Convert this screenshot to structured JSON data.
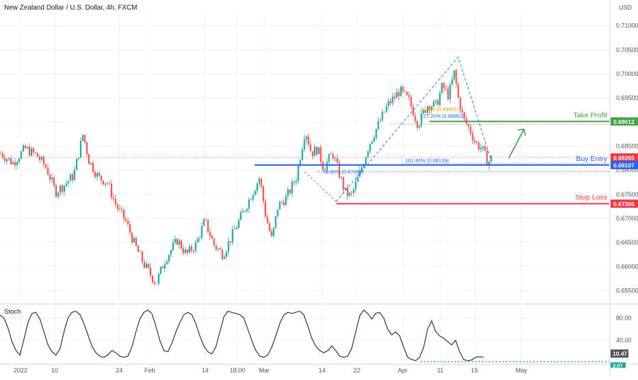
{
  "header": {
    "title": "New Zealand Dollar / U.S. Dollar, 4h, FXCM",
    "currency": "USD"
  },
  "colors": {
    "bull": "#26a69a",
    "bear": "#ef5350",
    "grid": "#eef0f4",
    "axis_text": "#555555",
    "buy_entry": "#2962ff",
    "stop_loss": "#f23645",
    "take_profit": "#43a047",
    "fib": "#2962ff",
    "fib_orange": "#ff9800",
    "stoch_line": "#333333"
  },
  "chart_data": [
    {
      "type": "candlestick",
      "title": "New Zealand Dollar / U.S. Dollar, 4h, FXCM",
      "ylim": [
        0.6525,
        0.7125
      ],
      "y_ticks": [
        "0.71000",
        "0.70500",
        "0.70000",
        "0.69500",
        "0.69000",
        "0.68500",
        "0.68000",
        "0.67500",
        "0.67000",
        "0.66500",
        "0.66000",
        "0.65500"
      ],
      "y_tick_values": [
        0.71,
        0.705,
        0.7,
        0.695,
        0.69,
        0.685,
        0.68,
        0.675,
        0.67,
        0.665,
        0.66,
        0.655
      ],
      "x_ticks": [
        "2022",
        "10",
        "24",
        "Feb",
        "14",
        "18:00",
        "Mar",
        "14",
        "22",
        "Apr",
        "11",
        "19",
        "May"
      ],
      "x_tick_fracs": [
        0.0,
        0.056,
        0.162,
        0.212,
        0.303,
        0.356,
        0.4,
        0.495,
        0.552,
        0.627,
        0.689,
        0.745,
        0.822
      ],
      "close_path": [
        [
          0.0,
          0.6835
        ],
        [
          0.02,
          0.6815
        ],
        [
          0.04,
          0.6845
        ],
        [
          0.06,
          0.683
        ],
        [
          0.075,
          0.6805
        ],
        [
          0.09,
          0.6755
        ],
        [
          0.105,
          0.677
        ],
        [
          0.12,
          0.679
        ],
        [
          0.135,
          0.6875
        ],
        [
          0.145,
          0.682
        ],
        [
          0.16,
          0.6785
        ],
        [
          0.175,
          0.6775
        ],
        [
          0.19,
          0.6725
        ],
        [
          0.205,
          0.6695
        ],
        [
          0.22,
          0.6645
        ],
        [
          0.235,
          0.6605
        ],
        [
          0.255,
          0.6565
        ],
        [
          0.27,
          0.6615
        ],
        [
          0.29,
          0.6655
        ],
        [
          0.305,
          0.6625
        ],
        [
          0.32,
          0.6645
        ],
        [
          0.335,
          0.6695
        ],
        [
          0.35,
          0.6645
        ],
        [
          0.365,
          0.6625
        ],
        [
          0.38,
          0.6665
        ],
        [
          0.395,
          0.6705
        ],
        [
          0.41,
          0.6745
        ],
        [
          0.425,
          0.6785
        ],
        [
          0.435,
          0.6705
        ],
        [
          0.445,
          0.6655
        ],
        [
          0.455,
          0.6725
        ],
        [
          0.47,
          0.6745
        ],
        [
          0.485,
          0.6785
        ],
        [
          0.5,
          0.6885
        ],
        [
          0.51,
          0.6835
        ],
        [
          0.52,
          0.6845
        ],
        [
          0.53,
          0.6805
        ],
        [
          0.545,
          0.6835
        ],
        [
          0.555,
          0.6795
        ],
        [
          0.565,
          0.6755
        ],
        [
          0.575,
          0.6745
        ],
        [
          0.59,
          0.6795
        ],
        [
          0.605,
          0.6855
        ],
        [
          0.62,
          0.6895
        ],
        [
          0.635,
          0.6935
        ],
        [
          0.655,
          0.6965
        ],
        [
          0.67,
          0.6945
        ],
        [
          0.685,
          0.6895
        ],
        [
          0.7,
          0.6935
        ],
        [
          0.715,
          0.6935
        ],
        [
          0.725,
          0.6975
        ],
        [
          0.735,
          0.6955
        ],
        [
          0.745,
          0.7005
        ],
        [
          0.75,
          0.6955
        ],
        [
          0.76,
          0.6905
        ],
        [
          0.77,
          0.6885
        ],
        [
          0.78,
          0.6855
        ],
        [
          0.79,
          0.6845
        ],
        [
          0.8,
          0.6815
        ],
        [
          0.805,
          0.6825
        ]
      ],
      "levels": [
        {
          "name": "Take Profit",
          "value": 0.69012,
          "label": "0.69012"
        },
        {
          "name": "Buy Entry",
          "value": 0.68107,
          "label": "0.68107"
        },
        {
          "name": "Stop Loss",
          "value": 0.67305,
          "label": "0.67305"
        },
        {
          "name": "current",
          "value": 0.68265,
          "label": "0.68265"
        }
      ],
      "annotations": [
        "Take Profit",
        "Buy Entry",
        "Stop Loss",
        "61.8% (0.68951)",
        "127.20% (0.68951)",
        "161.80% (0.68139)",
        "78.60% (0.67954)"
      ]
    },
    {
      "type": "line",
      "title": "Stoch",
      "ylim": [
        0,
        100
      ],
      "y_ticks": [
        "80.00",
        "40.00"
      ],
      "y_tick_values": [
        80,
        40
      ],
      "current_value": "10.47",
      "current_value_2": "2.07",
      "values": [
        85,
        80,
        62,
        38,
        22,
        14,
        42,
        72,
        88,
        90,
        78,
        55,
        32,
        20,
        14,
        25,
        55,
        80,
        90,
        92,
        86,
        70,
        50,
        30,
        18,
        12,
        10,
        14,
        22,
        18,
        12,
        10,
        12,
        28,
        55,
        78,
        90,
        94,
        88,
        65,
        40,
        22,
        20,
        35,
        55,
        72,
        86,
        90,
        86,
        70,
        48,
        30,
        20,
        16,
        28,
        55,
        82,
        92,
        90,
        88,
        86,
        80,
        60,
        40,
        22,
        12,
        10,
        14,
        28,
        48,
        70,
        85,
        90,
        88,
        90,
        92,
        86,
        66,
        44,
        30,
        22,
        18,
        22,
        30,
        22,
        12,
        10,
        12,
        26,
        55,
        84,
        94,
        88,
        78,
        88,
        90,
        80,
        60,
        50,
        55,
        48,
        28,
        10,
        6,
        4,
        10,
        28,
        60,
        75,
        56,
        48,
        44,
        38,
        32,
        40,
        20,
        6,
        4,
        5,
        10,
        11,
        10
      ]
    }
  ]
}
